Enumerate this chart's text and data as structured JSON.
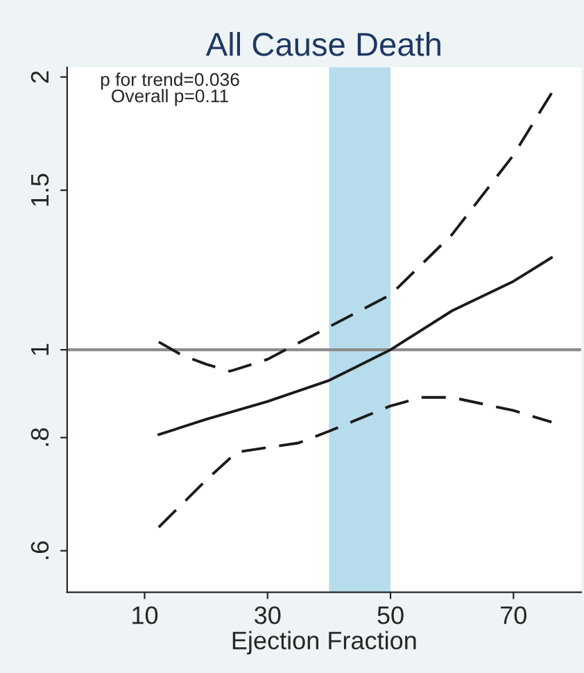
{
  "chart_data": {
    "type": "line",
    "title": "All Cause Death",
    "xlabel": "Ejection Fraction",
    "xlim": [
      -2.6,
      81
    ],
    "xticks": [
      10,
      30,
      50,
      70
    ],
    "ylim": [
      0.54,
      2.05
    ],
    "yticks": [
      {
        "value": 0.6,
        "label": ".6"
      },
      {
        "value": 0.8,
        "label": ".8"
      },
      1,
      1.5,
      2
    ],
    "log": "y",
    "grid": false,
    "legend": false,
    "marker": "none",
    "series": [
      {
        "color": "#1a1a1a",
        "line_style": "solid",
        "x": [
          12.3,
          20,
          30,
          40,
          50,
          60,
          70,
          76.2
        ],
        "values": [
          0.806,
          0.838,
          0.877,
          0.925,
          1.0,
          1.104,
          1.19,
          1.264
        ]
      },
      {
        "color": "#1a1a1a",
        "line_style": "dashed",
        "x": [
          12.3,
          16,
          20,
          23.9,
          30,
          40,
          50,
          60,
          70,
          76.2
        ],
        "values": [
          1.02,
          0.987,
          0.964,
          0.947,
          0.976,
          1.06,
          1.15,
          1.34,
          1.64,
          1.92
        ]
      },
      {
        "color": "#1a1a1a",
        "line_style": "dashed",
        "x": [
          12.3,
          20,
          25,
          30,
          35,
          40,
          50,
          55,
          60,
          70,
          76.2
        ],
        "values": [
          0.637,
          0.718,
          0.771,
          0.78,
          0.789,
          0.813,
          0.867,
          0.886,
          0.886,
          0.857,
          0.832
        ]
      }
    ],
    "ref_lines": [
      {
        "axis": "y",
        "value": 1,
        "color": "#8c8c8c"
      }
    ],
    "bands": [
      {
        "axis": "x",
        "from": 40,
        "to": 50,
        "color": "#b7dcec"
      }
    ],
    "annotations": [
      "p for trend=0.036\nOverall p=0.11"
    ]
  }
}
